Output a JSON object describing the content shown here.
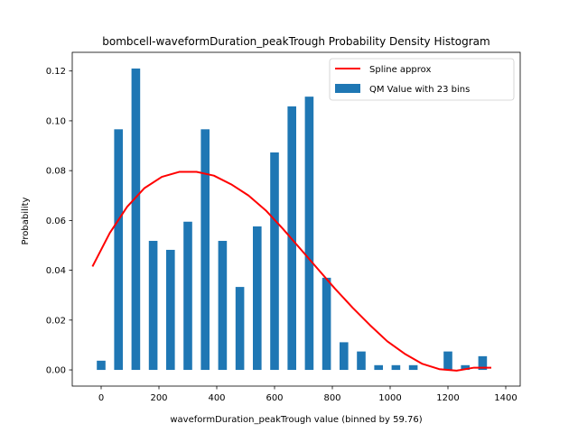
{
  "chart_data": {
    "type": "bar",
    "title": "bombcell-waveformDuration_peakTrough Probability Density Histogram",
    "xlabel": "waveformDuration_peakTrough value (binned by 59.76)",
    "ylabel": "Probability",
    "xlim": [
      -100,
      1450
    ],
    "ylim": [
      -0.0065,
      0.1275
    ],
    "xticks": [
      0,
      200,
      400,
      600,
      800,
      1000,
      1200,
      1400
    ],
    "xtick_labels": [
      "0",
      "200",
      "400",
      "600",
      "800",
      "1000",
      "1200",
      "1400"
    ],
    "yticks": [
      0.0,
      0.02,
      0.04,
      0.06,
      0.08,
      0.1,
      0.12
    ],
    "ytick_labels": [
      "0.00",
      "0.02",
      "0.04",
      "0.06",
      "0.08",
      "0.10",
      "0.12"
    ],
    "bar_width": 30,
    "legend": {
      "location": "upper right"
    },
    "series": [
      {
        "name": "QM Value with 23 bins",
        "kind": "bar",
        "color": "#1f77b4",
        "x": [
          0,
          60,
          120,
          180,
          240,
          300,
          360,
          420,
          480,
          540,
          600,
          660,
          720,
          780,
          840,
          900,
          960,
          1020,
          1080,
          1140,
          1200,
          1260,
          1320
        ],
        "values": [
          0.0037,
          0.0966,
          0.121,
          0.0518,
          0.0482,
          0.0595,
          0.0966,
          0.0518,
          0.0333,
          0.0576,
          0.0873,
          0.1058,
          0.1097,
          0.037,
          0.0111,
          0.0074,
          0.0019,
          0.0019,
          0.0019,
          0.0,
          0.0074,
          0.0019,
          0.0055
        ]
      },
      {
        "name": "Spline approx",
        "kind": "line",
        "color": "#ff0000",
        "x": [
          -30,
          30,
          90,
          150,
          210,
          270,
          330,
          390,
          450,
          510,
          570,
          630,
          690,
          750,
          810,
          870,
          930,
          990,
          1050,
          1110,
          1170,
          1230,
          1290,
          1350
        ],
        "values": [
          0.0415,
          0.055,
          0.0655,
          0.073,
          0.0775,
          0.0795,
          0.0795,
          0.078,
          0.0745,
          0.07,
          0.064,
          0.0565,
          0.0485,
          0.0405,
          0.0325,
          0.025,
          0.018,
          0.0115,
          0.0065,
          0.0025,
          0.0003,
          -0.0003,
          0.0009,
          0.0009
        ]
      }
    ]
  }
}
